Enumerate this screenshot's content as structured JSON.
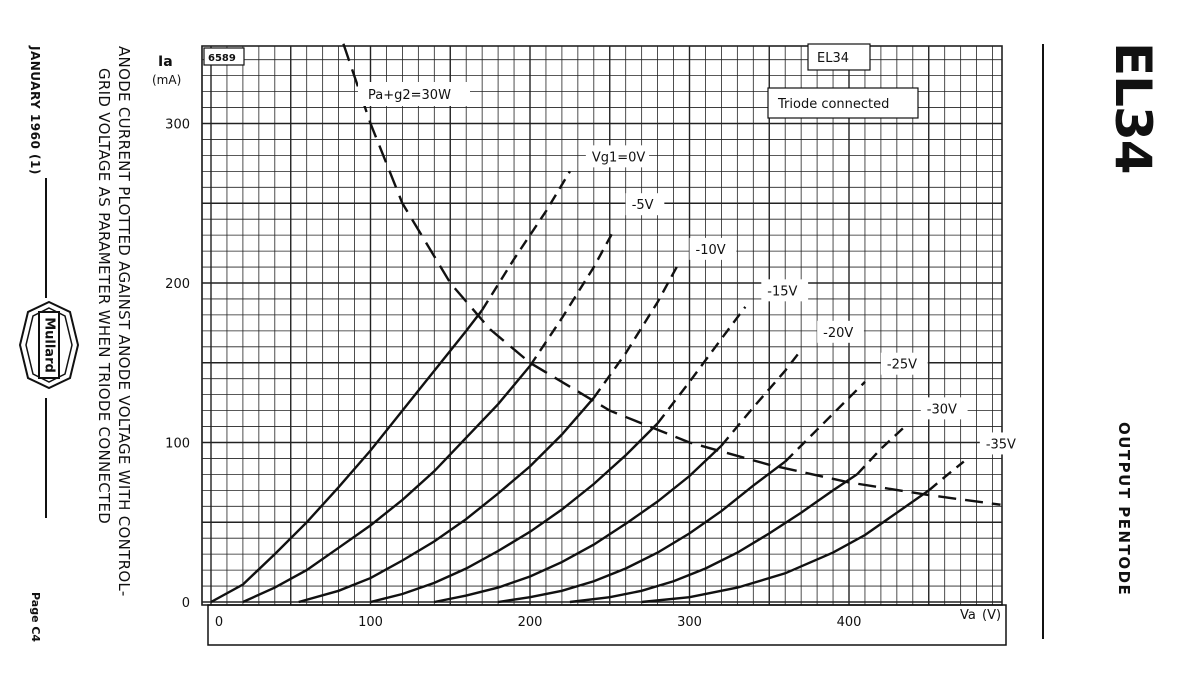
{
  "sheet": {
    "date": "JANUARY 1960 (1)",
    "page": "Page C4",
    "brand": "Mullard",
    "tube_code": "EL34",
    "tube_type": "OUTPUT PENTODE",
    "caption_line1": "ANODE CURRENT PLOTTED AGAINST ANODE VOLTAGE WITH CONTROL-",
    "caption_line2": "GRID VOLTAGE AS PARAMETER WHEN TRIODE CONNECTED"
  },
  "chart_data": {
    "type": "line",
    "ref": "6589",
    "tube_label": "EL34",
    "connection_label": "Triode connected",
    "ylabel": "Ia",
    "yunit": "(mA)",
    "xlabel": "Va",
    "xunit": "(V)",
    "xlim": [
      -10,
      495
    ],
    "ylim": [
      0,
      350
    ],
    "xticks": [
      0,
      100,
      200,
      300,
      400
    ],
    "yticks": [
      0,
      100,
      200,
      300
    ],
    "grid": true,
    "colors": {
      "grid": "#222222",
      "curve": "#111111"
    },
    "dissipation": {
      "label": "Pa+g2=30W",
      "points": [
        [
          83,
          350
        ],
        [
          100,
          300
        ],
        [
          120,
          250
        ],
        [
          150,
          200
        ],
        [
          175,
          171
        ],
        [
          200,
          150
        ],
        [
          250,
          120
        ],
        [
          300,
          100
        ],
        [
          350,
          86
        ],
        [
          400,
          75
        ],
        [
          450,
          67
        ],
        [
          495,
          61
        ]
      ]
    },
    "series": [
      {
        "name": "Vg1=0V",
        "solid": [
          [
            0,
            0
          ],
          [
            20,
            11
          ],
          [
            40,
            30
          ],
          [
            60,
            50
          ],
          [
            80,
            72
          ],
          [
            100,
            95
          ],
          [
            120,
            120
          ],
          [
            140,
            145
          ],
          [
            160,
            170
          ],
          [
            170,
            183
          ]
        ],
        "dashed": [
          [
            170,
            183
          ],
          [
            190,
            215
          ],
          [
            210,
            245
          ],
          [
            225,
            270
          ]
        ]
      },
      {
        "name": "-5V",
        "solid": [
          [
            20,
            0
          ],
          [
            40,
            9
          ],
          [
            60,
            20
          ],
          [
            80,
            34
          ],
          [
            100,
            48
          ],
          [
            120,
            64
          ],
          [
            140,
            82
          ],
          [
            160,
            103
          ],
          [
            180,
            124
          ],
          [
            200,
            148
          ]
        ],
        "dashed": [
          [
            200,
            148
          ],
          [
            220,
            178
          ],
          [
            240,
            210
          ],
          [
            252,
            232
          ]
        ]
      },
      {
        "name": "-10V",
        "solid": [
          [
            55,
            0
          ],
          [
            80,
            7
          ],
          [
            100,
            15
          ],
          [
            120,
            26
          ],
          [
            140,
            38
          ],
          [
            160,
            52
          ],
          [
            180,
            68
          ],
          [
            200,
            85
          ],
          [
            220,
            105
          ],
          [
            240,
            128
          ]
        ],
        "dashed": [
          [
            240,
            128
          ],
          [
            260,
            156
          ],
          [
            280,
            188
          ],
          [
            292,
            210
          ]
        ]
      },
      {
        "name": "-15V",
        "solid": [
          [
            100,
            0
          ],
          [
            120,
            5
          ],
          [
            140,
            12
          ],
          [
            160,
            21
          ],
          [
            180,
            32
          ],
          [
            200,
            44
          ],
          [
            220,
            58
          ],
          [
            240,
            74
          ],
          [
            260,
            92
          ],
          [
            280,
            112
          ]
        ],
        "dashed": [
          [
            280,
            112
          ],
          [
            300,
            138
          ],
          [
            320,
            165
          ],
          [
            335,
            185
          ]
        ]
      },
      {
        "name": "-20V",
        "solid": [
          [
            140,
            0
          ],
          [
            160,
            4
          ],
          [
            180,
            9
          ],
          [
            200,
            16
          ],
          [
            220,
            25
          ],
          [
            240,
            36
          ],
          [
            260,
            49
          ],
          [
            280,
            63
          ],
          [
            300,
            79
          ],
          [
            320,
            98
          ]
        ],
        "dashed": [
          [
            320,
            98
          ],
          [
            340,
            122
          ],
          [
            360,
            145
          ],
          [
            370,
            158
          ]
        ]
      },
      {
        "name": "-25V",
        "solid": [
          [
            180,
            0
          ],
          [
            200,
            3
          ],
          [
            220,
            7
          ],
          [
            240,
            13
          ],
          [
            260,
            21
          ],
          [
            280,
            31
          ],
          [
            300,
            43
          ],
          [
            320,
            57
          ],
          [
            340,
            73
          ],
          [
            360,
            88
          ]
        ],
        "dashed": [
          [
            360,
            88
          ],
          [
            380,
            108
          ],
          [
            400,
            128
          ],
          [
            410,
            138
          ]
        ]
      },
      {
        "name": "-30V",
        "solid": [
          [
            225,
            0
          ],
          [
            250,
            3
          ],
          [
            270,
            7
          ],
          [
            290,
            13
          ],
          [
            310,
            21
          ],
          [
            330,
            31
          ],
          [
            350,
            43
          ],
          [
            370,
            56
          ],
          [
            390,
            70
          ],
          [
            405,
            80
          ]
        ],
        "dashed": [
          [
            405,
            80
          ],
          [
            420,
            96
          ],
          [
            435,
            110
          ]
        ]
      },
      {
        "name": "-35V",
        "solid": [
          [
            270,
            0
          ],
          [
            300,
            3
          ],
          [
            330,
            9
          ],
          [
            360,
            18
          ],
          [
            390,
            31
          ],
          [
            410,
            42
          ],
          [
            430,
            56
          ],
          [
            450,
            70
          ]
        ],
        "dashed": [
          [
            450,
            70
          ],
          [
            462,
            80
          ],
          [
            472,
            88
          ]
        ]
      }
    ],
    "series_label_anchor": [
      [
        230,
        270
      ],
      [
        255,
        240
      ],
      [
        295,
        212
      ],
      [
        340,
        186
      ],
      [
        375,
        160
      ],
      [
        415,
        140
      ],
      [
        440,
        112
      ],
      [
        477,
        90
      ]
    ]
  }
}
